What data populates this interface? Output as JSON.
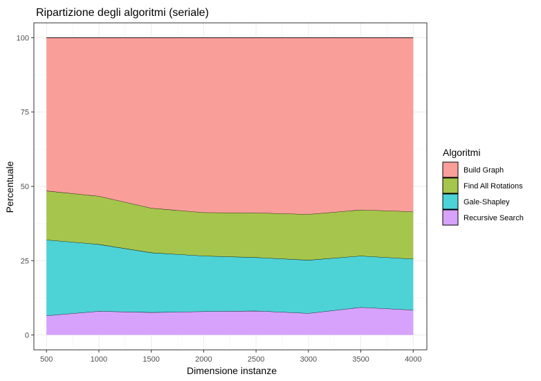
{
  "chart_data": {
    "type": "area",
    "stacked": true,
    "title": "Ripartizione degli algoritmi (seriale)",
    "xlabel": "Dimensione instanze",
    "ylabel": "Percentuale",
    "xlim": [
      380,
      4130
    ],
    "ylim": [
      -5,
      105
    ],
    "x_ticks": [
      500,
      1000,
      1500,
      2000,
      2500,
      3000,
      3500,
      4000
    ],
    "y_ticks": [
      0,
      25,
      50,
      75,
      100
    ],
    "grid": true,
    "legend": {
      "title": "Algoritmi",
      "placement": "right"
    },
    "x": [
      500,
      1000,
      1500,
      2000,
      2500,
      3000,
      3500,
      4000
    ],
    "series": [
      {
        "name": "Recursive Search",
        "color": "#D7A2FB",
        "values": [
          6.5,
          8.0,
          7.6,
          7.9,
          8.1,
          7.3,
          9.3,
          8.4
        ]
      },
      {
        "name": "Gale-Shapley",
        "color": "#4DD2D6",
        "values": [
          25.5,
          22.5,
          20.1,
          18.7,
          18.0,
          17.9,
          17.3,
          17.2
        ]
      },
      {
        "name": "Find All Rotations",
        "color": "#A6C54C",
        "values": [
          16.5,
          16.2,
          15.0,
          14.6,
          15.0,
          15.4,
          15.5,
          15.9
        ]
      },
      {
        "name": "Build Graph",
        "color": "#FA9E9A",
        "values": [
          51.5,
          53.3,
          57.3,
          58.8,
          58.9,
          59.4,
          57.9,
          58.5
        ]
      }
    ]
  }
}
